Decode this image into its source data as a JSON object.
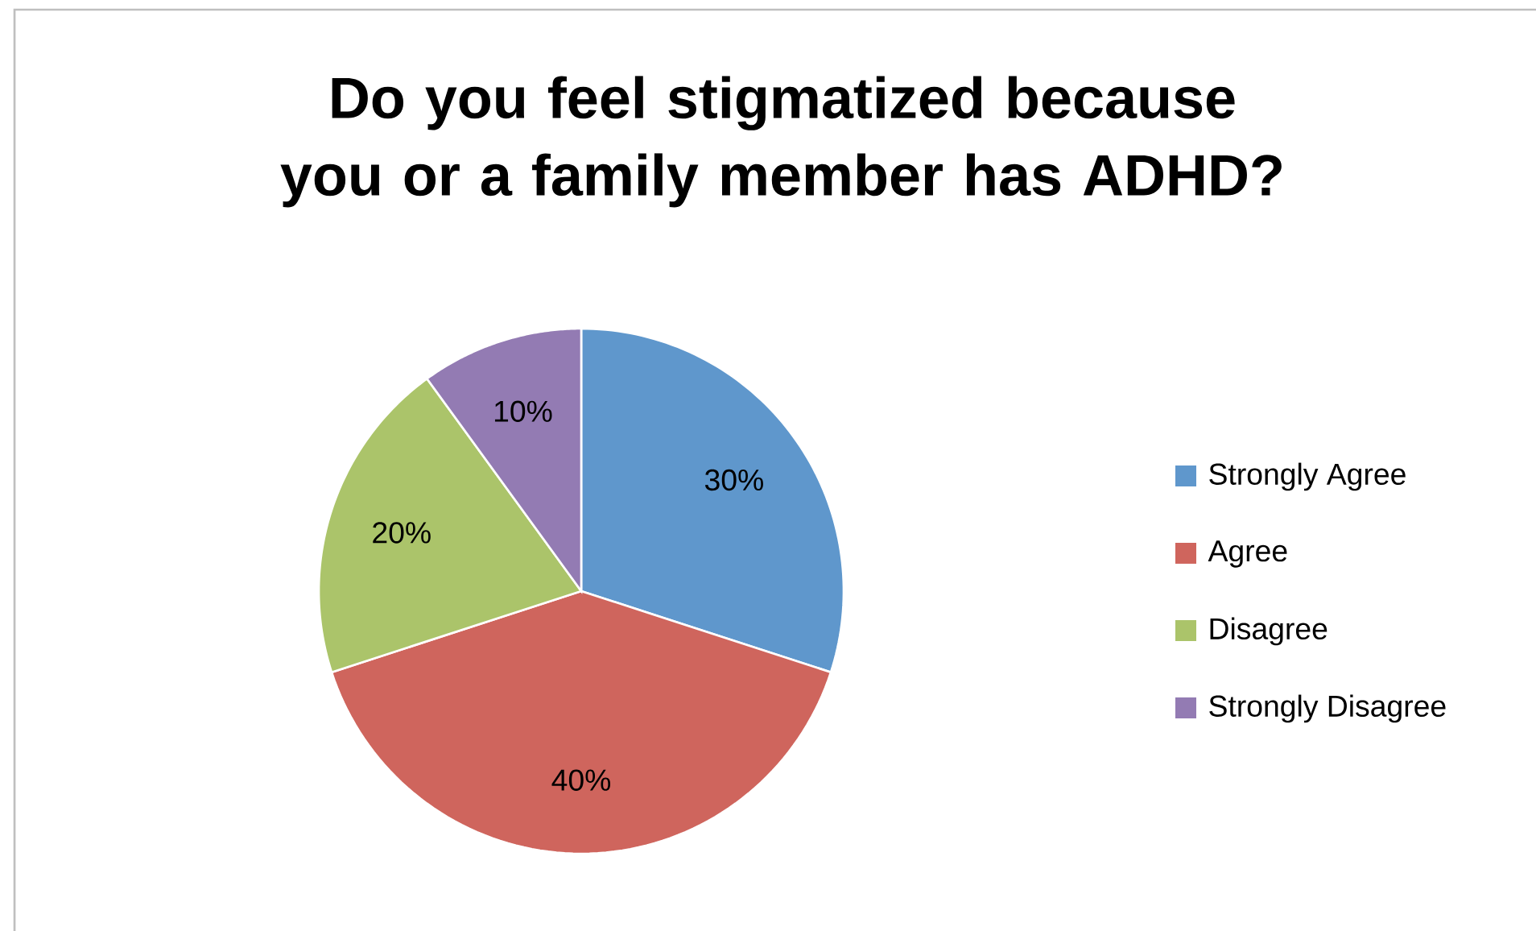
{
  "chart_data": {
    "type": "pie",
    "title": "Do you feel stigmatized because you or a family member has ADHD?",
    "categories": [
      "Strongly Agree",
      "Agree",
      "Disagree",
      "Strongly Disagree"
    ],
    "values": [
      30,
      40,
      20,
      10
    ],
    "value_labels": [
      "30%",
      "40%",
      "20%",
      "10%"
    ],
    "colors": [
      "#5f97cc",
      "#cf655d",
      "#abc46a",
      "#937bb3"
    ],
    "legend": "right"
  }
}
